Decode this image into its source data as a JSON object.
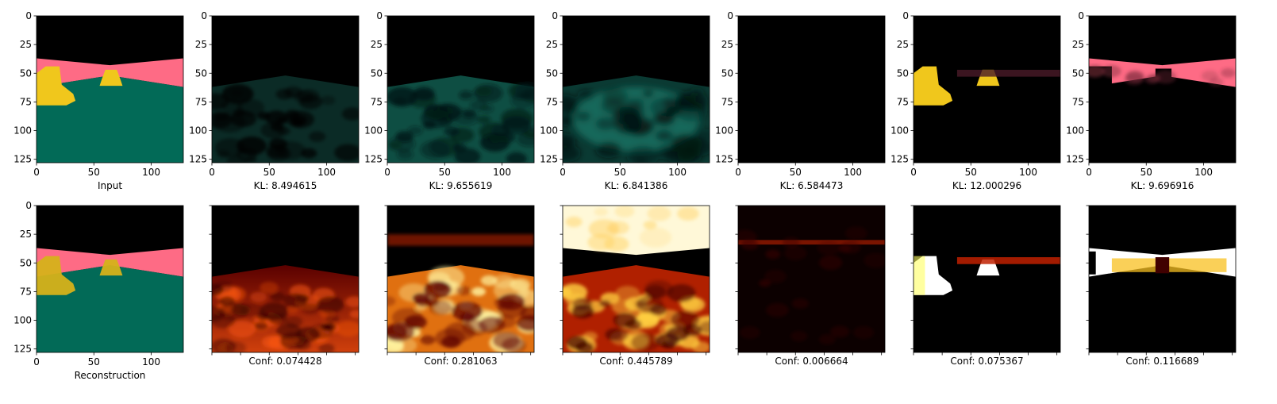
{
  "chart_data": [
    {
      "type": "image-grid",
      "rows": 2,
      "columns": 7,
      "image_extent": [
        0,
        128
      ],
      "tick_values": [
        0,
        25,
        50,
        75,
        100,
        125
      ],
      "x_tick_values": [
        0,
        50,
        100
      ],
      "top_row": [
        {
          "caption": "Input",
          "view": "input"
        },
        {
          "caption": "KL: 8.494615",
          "kl": 8.494615,
          "view": "slot-floor-faint"
        },
        {
          "caption": "KL: 9.655619",
          "kl": 9.655619,
          "view": "slot-floor"
        },
        {
          "caption": "KL: 6.841386",
          "kl": 6.841386,
          "view": "slot-floor-center"
        },
        {
          "caption": "KL: 6.584473",
          "kl": 6.584473,
          "view": "slot-empty"
        },
        {
          "caption": "KL: 12.000296",
          "kl": 12.000296,
          "view": "slot-objects"
        },
        {
          "caption": "KL: 9.696916",
          "kl": 9.696916,
          "view": "slot-wall"
        }
      ],
      "bottom_row": [
        {
          "caption": "Reconstruction",
          "view": "reconstruction"
        },
        {
          "caption": "Conf: 0.074428",
          "conf": 0.074428,
          "view": "conf-floor-dim"
        },
        {
          "caption": "Conf: 0.281063",
          "conf": 0.281063,
          "view": "conf-floor"
        },
        {
          "caption": "Conf: 0.445789",
          "conf": 0.445789,
          "view": "conf-sky-floor"
        },
        {
          "caption": "Conf: 0.006664",
          "conf": 0.006664,
          "view": "conf-line"
        },
        {
          "caption": "Conf: 0.075367",
          "conf": 0.075367,
          "view": "conf-objects"
        },
        {
          "caption": "Conf: 0.116689",
          "conf": 0.116689,
          "view": "conf-wall"
        }
      ],
      "colors": {
        "sky": "#000000",
        "wall": "#fe6b85",
        "floor": "#026a57",
        "object": "#f0c71c",
        "heat_low": "#000000",
        "heat_mid": "#d83a10",
        "heat_high": "#ffffff"
      }
    }
  ]
}
